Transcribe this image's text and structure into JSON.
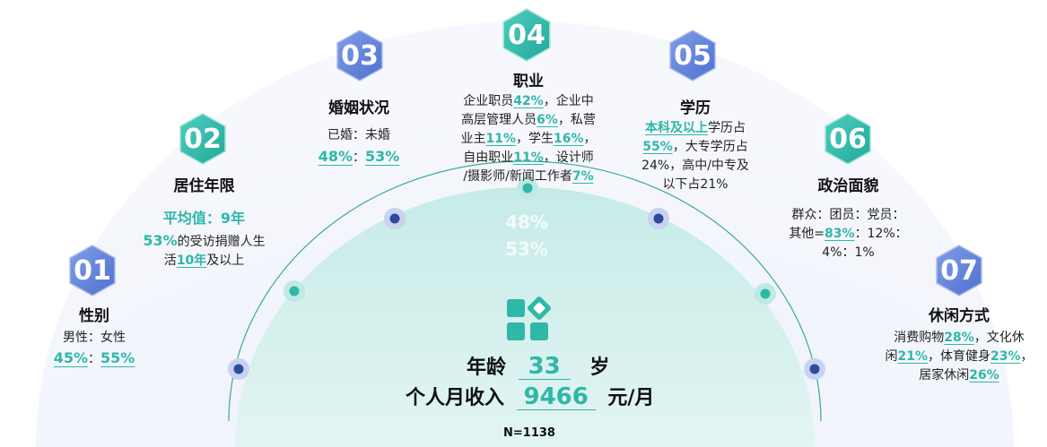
{
  "items": [
    {
      "num": "01",
      "title": "性别",
      "text": "男性：女性",
      "values": [
        "45%",
        "55%"
      ],
      "sep": "："
    },
    {
      "num": "02",
      "title": "居住年限",
      "avg_label": "平均值：9年",
      "pct": "53%",
      "t1": "的受访捐赠人生",
      "t2a": "活",
      "years": "10年",
      "t2b": "及以上"
    },
    {
      "num": "03",
      "title": "婚姻状况",
      "text": "已婚：未婚",
      "values": [
        "48%",
        "53%"
      ],
      "sep": "："
    },
    {
      "num": "04",
      "title": "职业",
      "l1a": "企业职员",
      "p1": "42%",
      "l1b": "，企业中",
      "l2a": "高层管理人员",
      "p2": "6%",
      "l2b": "，私营",
      "l3a": "业主",
      "p3": "11%",
      "l3b": "，学生",
      "p4": "16%",
      "l3c": "，",
      "l4a": "自由职业",
      "p5": "11%",
      "l4b": "，设计师",
      "l5a": "/摄影师/新闻工作者",
      "p6": "7%"
    },
    {
      "num": "05",
      "title": "学历",
      "hl1": "本科及以上",
      "l1b": "学历占",
      "p1": "55%",
      "l2b": "，大专学历占",
      "l3": "24%，高中/中专及",
      "l4": "以下占21%"
    },
    {
      "num": "06",
      "title": "政治面貌",
      "l1": "群众：团员：党员：",
      "l2a": "其他=",
      "p1": "83%",
      "l2b": "：12%：",
      "l3": "4%：1%"
    },
    {
      "num": "07",
      "title": "休闲方式",
      "l1a": "消费购物",
      "p1": "28%",
      "l1b": "，文化休",
      "l2a": "闲",
      "p2": "21%",
      "l2b": "，体育健身",
      "p3": "23%",
      "l2c": "，",
      "l3a": "居家休闲",
      "p4": "26%"
    }
  ],
  "center": {
    "ghost1": "48%",
    "ghost2": "53%",
    "age_label": "年龄",
    "age_value": "33",
    "age_unit": "岁",
    "income_label": "个人月收入",
    "income_value": "9466",
    "income_unit": "元/月"
  },
  "sample": "N=1138",
  "colors": {
    "teal": "#2fb7a8",
    "blue": "#5a7fd6",
    "teal_light": "#cdeeea",
    "arc_dot": "#2b4aa0"
  }
}
